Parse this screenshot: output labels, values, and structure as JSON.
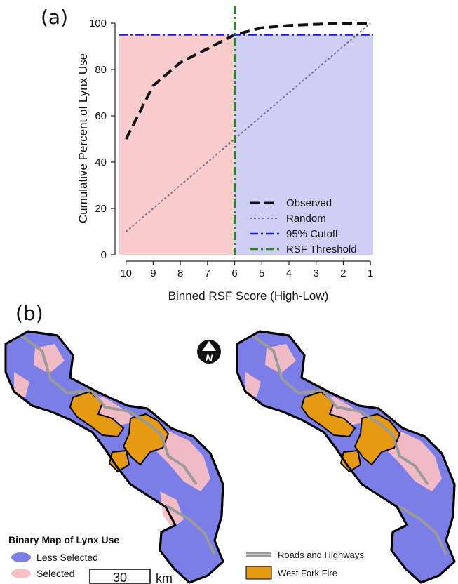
{
  "panel_a_label": "(a)",
  "panel_b_label": "(b)",
  "chart_data": {
    "type": "line",
    "xlabel": "Binned RSF Score (High-Low)",
    "ylabel": "Cumulative Percent of Lynx Use",
    "x": [
      10,
      9,
      8,
      7,
      6,
      5,
      4,
      3,
      2,
      1
    ],
    "x_tick_labels": [
      "10",
      "9",
      "8",
      "7",
      "6",
      "5",
      "4",
      "3",
      "2",
      "1"
    ],
    "xlim": [
      10.25,
      0.9
    ],
    "y_ticks": [
      0,
      20,
      40,
      60,
      80,
      100
    ],
    "ylim": [
      0,
      100
    ],
    "series": [
      {
        "name": "Observed",
        "style": "dashed",
        "color": "#111111",
        "values": [
          50,
          73,
          83,
          89,
          95,
          98,
          99,
          99.5,
          100,
          100
        ]
      },
      {
        "name": "Random",
        "style": "dotted",
        "color": "#7a6e86",
        "values": [
          10,
          20,
          30,
          40,
          50,
          60,
          70,
          80,
          90,
          100
        ]
      }
    ],
    "reference_lines": [
      {
        "name": "95% Cutoff",
        "orientation": "horizontal",
        "value": 95,
        "style": "dash-dot",
        "color": "#1a1ad6"
      },
      {
        "name": "RSF Threshold",
        "orientation": "vertical",
        "value": 6,
        "style": "dash-dot",
        "color": "#1f8a1f"
      }
    ],
    "shaded_regions": [
      {
        "x_from": 10.25,
        "x_to": 6,
        "y_to": 95,
        "color": "#f9cdcd"
      },
      {
        "x_from": 6,
        "x_to": 0.9,
        "y_to": 95,
        "color": "#cfcff5"
      }
    ],
    "legend_position": "bottom-right",
    "grid": false
  },
  "map": {
    "legend_title": "Binary Map of Lynx Use",
    "legend_items": [
      {
        "label": "Less Selected",
        "color": "#7b7ee6"
      },
      {
        "label": "Selected",
        "color": "#f8bfc4"
      }
    ],
    "legend2_items": [
      {
        "label": "Roads and Highways",
        "color": "#9a9a9a"
      },
      {
        "label": "West Fork Fire",
        "color": "#e69a12"
      }
    ],
    "scale_value": "30",
    "scale_unit": "km",
    "north_label": "N",
    "colors": {
      "less": "#7b7ee6",
      "selected": "#f8bfc4",
      "fire": "#e69a12",
      "road": "#9a9a9a"
    }
  }
}
